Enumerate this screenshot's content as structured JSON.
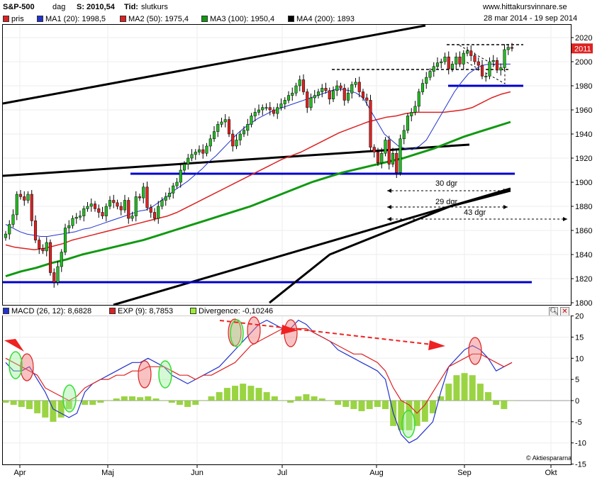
{
  "header": {
    "symbol": "S&P-500",
    "period": "dag",
    "last": "S: 2010,54",
    "type_label": "Tid:",
    "type_value": "slutkurs",
    "website": "www.hittakursvinnare.se",
    "date_range": "28 mar 2014 - 19 sep 2014"
  },
  "price_legend": [
    {
      "label": "pris",
      "color": "#dd2222"
    },
    {
      "label": "MA1 (20): 1998,5",
      "color": "#2233cc"
    },
    {
      "label": "MA2 (50): 1975,4",
      "color": "#dd2222"
    },
    {
      "label": "MA3 (100): 1950,4",
      "color": "#119911"
    },
    {
      "label": "MA4 (200): 1893",
      "color": "#000000"
    }
  ],
  "macd_legend": [
    {
      "label": "MACD (26, 12): 8,6828",
      "color": "#2233cc"
    },
    {
      "label": "EXP (9): 8,7853",
      "color": "#dd2222"
    },
    {
      "label": "Divergence: -0,10246",
      "color": "#99ee33"
    }
  ],
  "last_price_tag": "2011",
  "watermark": "Aktiespararna",
  "annotations": [
    "30 dgr",
    "29 dgr",
    "43 dgr"
  ],
  "colors": {
    "up": "#22bb22",
    "down": "#dd2222",
    "ma1": "#2233cc",
    "ma2": "#dd2222",
    "ma3": "#119911",
    "ma4": "#000000",
    "hline": "#0000cc"
  },
  "chart_data": [
    {
      "type": "candlestick",
      "title": "S&P-500",
      "x_ticks": [
        "Apr",
        "Maj",
        "Jun",
        "Jul",
        "Aug",
        "Sep",
        "Okt"
      ],
      "y_ticks": [
        1800,
        1820,
        1840,
        1860,
        1880,
        1900,
        1920,
        1940,
        1960,
        1980,
        2000,
        2020
      ],
      "ylim": [
        1795,
        2025
      ],
      "close": [
        1857,
        1865,
        1873,
        1890,
        1888,
        1885,
        1890,
        1868,
        1852,
        1845,
        1843,
        1850,
        1825,
        1817,
        1830,
        1842,
        1862,
        1864,
        1870,
        1871,
        1872,
        1878,
        1880,
        1882,
        1878,
        1875,
        1872,
        1880,
        1885,
        1883,
        1880,
        1877,
        1885,
        1870,
        1872,
        1888,
        1887,
        1896,
        1879,
        1875,
        1870,
        1880,
        1885,
        1888,
        1891,
        1897,
        1900,
        1910,
        1915,
        1920,
        1923,
        1925,
        1927,
        1924,
        1930,
        1936,
        1942,
        1948,
        1950,
        1952,
        1940,
        1930,
        1935,
        1940,
        1943,
        1948,
        1955,
        1958,
        1960,
        1962,
        1962,
        1960,
        1957,
        1962,
        1965,
        1968,
        1972,
        1974,
        1980,
        1985,
        1975,
        1962,
        1970,
        1972,
        1975,
        1978,
        1976,
        1969,
        1976,
        1980,
        1978,
        1968,
        1974,
        1981,
        1983,
        1975,
        1970,
        1968,
        1929,
        1925,
        1916,
        1924,
        1935,
        1915,
        1924,
        1908,
        1936,
        1943,
        1955,
        1958,
        1963,
        1975,
        1982,
        1987,
        1992,
        1996,
        1999,
        2000,
        2004,
        1994,
        1998,
        2004,
        1998,
        2007,
        2009,
        2005,
        2000,
        1997,
        1988,
        1988,
        2000,
        2001,
        1993,
        1995,
        2010,
        2012,
        2011
      ],
      "ma1": [
        1865,
        1862,
        1859,
        1857,
        1856,
        1855,
        1855,
        1856,
        1857,
        1858,
        1859,
        1861,
        1862,
        1864,
        1866,
        1868,
        1870,
        1872,
        1874,
        1876,
        1877,
        1880,
        1884,
        1888,
        1893,
        1897,
        1901,
        1906,
        1911,
        1917,
        1922,
        1928,
        1934,
        1940,
        1945,
        1949,
        1953,
        1956,
        1959,
        1961,
        1963,
        1965,
        1967,
        1969,
        1971,
        1973,
        1975,
        1977,
        1977,
        1976,
        1974,
        1970,
        1960,
        1950,
        1940,
        1935,
        1930,
        1928,
        1927,
        1930,
        1935,
        1945,
        1955,
        1965,
        1975,
        1983,
        1990,
        1994,
        1997,
        1998,
        1998,
        1998,
        1998
      ],
      "ma2": [
        1848,
        1846,
        1845,
        1844,
        1845,
        1847,
        1849,
        1852,
        1854,
        1856,
        1858,
        1860,
        1862,
        1864,
        1866,
        1868,
        1870,
        1872,
        1875,
        1879,
        1883,
        1887,
        1891,
        1895,
        1899,
        1903,
        1907,
        1911,
        1915,
        1919,
        1922,
        1925,
        1929,
        1933,
        1937,
        1941,
        1944,
        1947,
        1950,
        1952,
        1954,
        1955,
        1957,
        1958,
        1958,
        1958,
        1958,
        1959,
        1960,
        1962,
        1966,
        1970,
        1973,
        1975
      ],
      "ma3": [
        1822,
        1826,
        1829,
        1833,
        1836,
        1840,
        1843,
        1846,
        1849,
        1852,
        1856,
        1860,
        1864,
        1868,
        1872,
        1876,
        1880,
        1885,
        1890,
        1895,
        1900,
        1904,
        1908,
        1911,
        1914,
        1917,
        1920,
        1924,
        1928,
        1933,
        1938,
        1942,
        1946,
        1950
      ],
      "ma4": [
        1800,
        1840,
        1860,
        1880,
        1893
      ]
    },
    {
      "type": "line",
      "title": "MACD",
      "y_ticks": [
        -15,
        -10,
        -5,
        0,
        5,
        10,
        15,
        20
      ],
      "ylim": [
        -15,
        20
      ],
      "series": [
        {
          "name": "MACD (26, 12)",
          "values": [
            9,
            7,
            7,
            8,
            5,
            2,
            -2,
            -3,
            -4,
            -3,
            2,
            4,
            5,
            6,
            7,
            8,
            9,
            9,
            10,
            9,
            8,
            6,
            5,
            4,
            5,
            6,
            7,
            8,
            10,
            12,
            14,
            16,
            18,
            19,
            18,
            17,
            17,
            19,
            18,
            16,
            15,
            14,
            12,
            11,
            10,
            9,
            8,
            7,
            5,
            -3,
            -8,
            -10,
            -9,
            -7,
            -5,
            2,
            8,
            10,
            12,
            13,
            12,
            10,
            7,
            8,
            9
          ]
        },
        {
          "name": "EXP (9)",
          "values": [
            10,
            9,
            8,
            7,
            6,
            3,
            2,
            1,
            0,
            1,
            3,
            4,
            5,
            5,
            6,
            6,
            7,
            7,
            8,
            8,
            8,
            7,
            6,
            6,
            5,
            6,
            6,
            7,
            8,
            9,
            11,
            13,
            14,
            15,
            16,
            17,
            17,
            17,
            17,
            16,
            15,
            14,
            13,
            12,
            11,
            11,
            10,
            9,
            7,
            3,
            0,
            -1,
            -3,
            -1,
            2,
            5,
            8,
            9,
            10,
            11,
            11,
            10,
            9,
            8,
            9
          ]
        }
      ],
      "divergence": [
        -0.5,
        -1,
        -1.5,
        -2,
        -3,
        -4,
        -5,
        -4,
        -2,
        0,
        -1,
        -1,
        -0.5,
        0,
        0.5,
        1,
        1,
        0.8,
        1,
        0.5,
        0,
        -0.5,
        -1,
        -1.5,
        -1,
        0,
        1,
        2,
        3,
        3.5,
        4,
        3.5,
        3,
        2,
        1,
        0,
        -0.5,
        1,
        1.5,
        1,
        0.5,
        0,
        -1,
        -1.5,
        -2,
        -2.5,
        -2,
        -1.5,
        -2,
        -6,
        -7,
        -7,
        -6,
        -5,
        -3,
        1,
        4,
        6,
        6.5,
        6,
        4,
        2,
        -1,
        -2,
        0
      ]
    }
  ]
}
